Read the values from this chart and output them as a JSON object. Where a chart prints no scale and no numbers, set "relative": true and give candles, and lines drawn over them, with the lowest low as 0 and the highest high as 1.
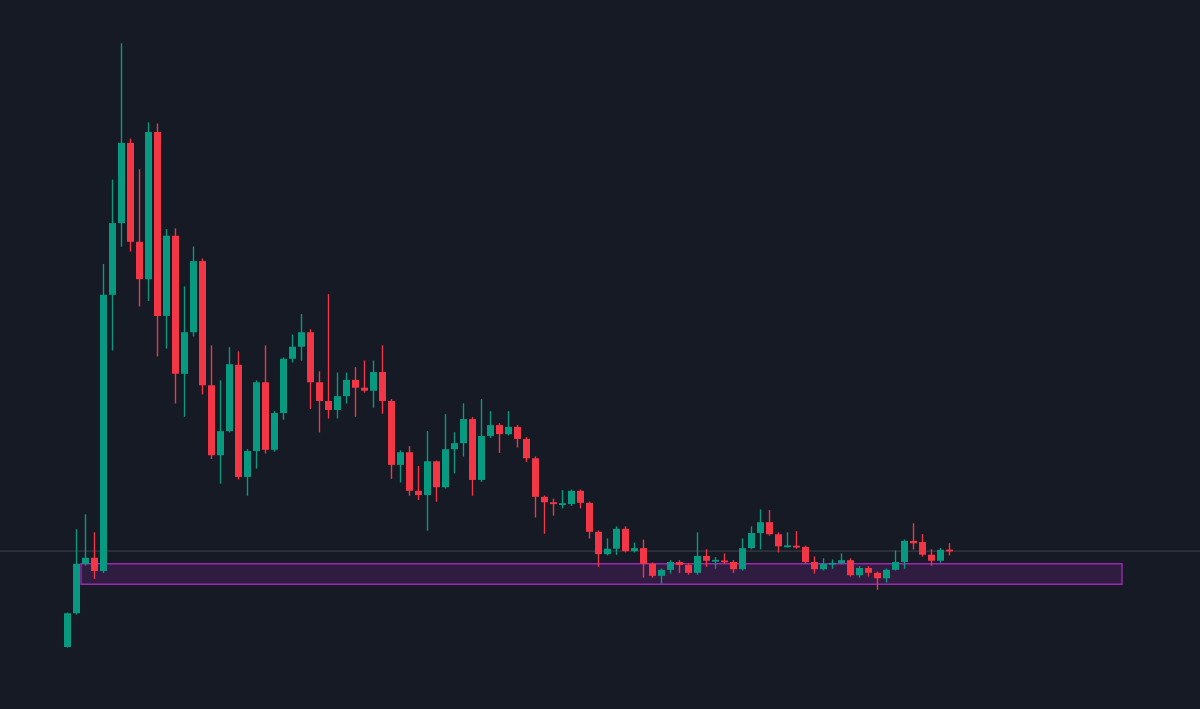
{
  "chart_data": {
    "type": "candlestick",
    "relative": true,
    "categories": [
      null,
      null,
      null,
      null,
      null,
      null,
      null,
      null,
      null,
      null,
      null,
      null,
      null,
      null,
      null,
      null,
      null,
      null,
      null,
      null,
      null,
      null,
      null,
      null,
      null,
      null,
      null,
      null,
      null,
      null,
      null,
      null,
      null,
      null,
      null,
      null,
      null,
      null,
      null,
      null,
      null,
      null,
      null,
      null,
      null,
      null,
      null,
      null,
      null,
      null,
      null,
      null,
      null,
      null,
      null,
      null,
      null,
      null,
      null,
      null,
      null,
      null,
      null,
      null,
      null,
      null,
      null,
      null,
      null,
      null,
      null,
      null,
      null,
      null,
      null,
      null,
      null,
      null,
      null,
      null,
      null,
      null,
      null,
      null,
      null,
      null,
      null,
      null,
      null,
      null,
      null,
      null,
      null,
      null,
      null,
      null,
      null,
      null,
      null
    ],
    "ohlc": [
      [
        0,
        0.056,
        0,
        0.056
      ],
      [
        0.056,
        0.194,
        0.055,
        0.138
      ],
      [
        0.138,
        0.219,
        0.136,
        0.148
      ],
      [
        0.148,
        0.189,
        0.114,
        0.126
      ],
      [
        0.126,
        0.634,
        0.124,
        0.584
      ],
      [
        0.584,
        0.774,
        0.493,
        0.703
      ],
      [
        0.703,
        1.0,
        0.665,
        0.836
      ],
      [
        0.836,
        0.842,
        0.657,
        0.672
      ],
      [
        0.672,
        0.791,
        0.566,
        0.61
      ],
      [
        0.61,
        0.869,
        0.575,
        0.854
      ],
      [
        0.854,
        0.867,
        0.483,
        0.549
      ],
      [
        0.549,
        0.692,
        0.496,
        0.682
      ],
      [
        0.682,
        0.693,
        0.405,
        0.453
      ],
      [
        0.453,
        0.597,
        0.383,
        0.522
      ],
      [
        0.522,
        0.663,
        0.516,
        0.64
      ],
      [
        0.64,
        0.643,
        0.42,
        0.434
      ],
      [
        0.434,
        0.499,
        0.313,
        0.318
      ],
      [
        0.318,
        0.441,
        0.272,
        0.358
      ],
      [
        0.358,
        0.496,
        0.357,
        0.469
      ],
      [
        0.468,
        0.489,
        0.279,
        0.282
      ],
      [
        0.282,
        0.327,
        0.252,
        0.325
      ],
      [
        0.325,
        0.441,
        0.297,
        0.439
      ],
      [
        0.439,
        0.499,
        0.322,
        0.327
      ],
      [
        0.327,
        0.39,
        0.325,
        0.388
      ],
      [
        0.388,
        0.479,
        0.378,
        0.478
      ],
      [
        0.478,
        0.517,
        0.473,
        0.498
      ],
      [
        0.498,
        0.551,
        0.476,
        0.522
      ],
      [
        0.522,
        0.526,
        0.396,
        0.439
      ],
      [
        0.439,
        0.456,
        0.357,
        0.408
      ],
      [
        0.408,
        0.584,
        0.38,
        0.393
      ],
      [
        0.393,
        0.454,
        0.38,
        0.416
      ],
      [
        0.416,
        0.454,
        0.405,
        0.443
      ],
      [
        0.443,
        0.463,
        0.383,
        0.43
      ],
      [
        0.43,
        0.474,
        0.423,
        0.425
      ],
      [
        0.425,
        0.474,
        0.398,
        0.456
      ],
      [
        0.456,
        0.499,
        0.388,
        0.408
      ],
      [
        0.408,
        0.41,
        0.28,
        0.302
      ],
      [
        0.302,
        0.325,
        0.274,
        0.323
      ],
      [
        0.323,
        0.332,
        0.252,
        0.259
      ],
      [
        0.259,
        0.299,
        0.245,
        0.252
      ],
      [
        0.252,
        0.357,
        0.194,
        0.308
      ],
      [
        0.308,
        0.308,
        0.242,
        0.265
      ],
      [
        0.265,
        0.385,
        0.264,
        0.328
      ],
      [
        0.328,
        0.355,
        0.289,
        0.338
      ],
      [
        0.338,
        0.403,
        0.317,
        0.378
      ],
      [
        0.378,
        0.38,
        0.252,
        0.277
      ],
      [
        0.277,
        0.41,
        0.275,
        0.35
      ],
      [
        0.35,
        0.39,
        0.348,
        0.368
      ],
      [
        0.368,
        0.37,
        0.323,
        0.353
      ],
      [
        0.353,
        0.39,
        0.352,
        0.365
      ],
      [
        0.365,
        0.367,
        0.332,
        0.345
      ],
      [
        0.345,
        0.347,
        0.308,
        0.313
      ],
      [
        0.313,
        0.315,
        0.216,
        0.249
      ],
      [
        0.249,
        0.25,
        0.189,
        0.24
      ],
      [
        0.24,
        0.245,
        0.219,
        0.237
      ],
      [
        0.237,
        0.259,
        0.231,
        0.237
      ],
      [
        0.237,
        0.26,
        0.235,
        0.259
      ],
      [
        0.259,
        0.26,
        0.231,
        0.239
      ],
      [
        0.239,
        0.24,
        0.181,
        0.191
      ],
      [
        0.191,
        0.192,
        0.134,
        0.154
      ],
      [
        0.154,
        0.179,
        0.153,
        0.163
      ],
      [
        0.163,
        0.199,
        0.154,
        0.196
      ],
      [
        0.196,
        0.199,
        0.158,
        0.159
      ],
      [
        0.159,
        0.172,
        0.158,
        0.164
      ],
      [
        0.164,
        0.177,
        0.116,
        0.138
      ],
      [
        0.138,
        0.139,
        0.116,
        0.118
      ],
      [
        0.118,
        0.129,
        0.106,
        0.128
      ],
      [
        0.128,
        0.143,
        0.123,
        0.141
      ],
      [
        0.141,
        0.143,
        0.124,
        0.136
      ],
      [
        0.136,
        0.138,
        0.121,
        0.123
      ],
      [
        0.123,
        0.189,
        0.121,
        0.151
      ],
      [
        0.151,
        0.161,
        0.134,
        0.143
      ],
      [
        0.143,
        0.148,
        0.131,
        0.143
      ],
      [
        0.143,
        0.154,
        0.139,
        0.141
      ],
      [
        0.141,
        0.143,
        0.124,
        0.129
      ],
      [
        0.129,
        0.179,
        0.128,
        0.164
      ],
      [
        0.164,
        0.199,
        0.163,
        0.189
      ],
      [
        0.189,
        0.227,
        0.163,
        0.207
      ],
      [
        0.207,
        0.226,
        0.186,
        0.187
      ],
      [
        0.187,
        0.189,
        0.158,
        0.167
      ],
      [
        0.167,
        0.189,
        0.166,
        0.167
      ],
      [
        0.167,
        0.191,
        0.164,
        0.166
      ],
      [
        0.166,
        0.167,
        0.139,
        0.141
      ],
      [
        0.141,
        0.149,
        0.123,
        0.129
      ],
      [
        0.129,
        0.146,
        0.128,
        0.138
      ],
      [
        0.138,
        0.144,
        0.131,
        0.138
      ],
      [
        0.139,
        0.154,
        0.138,
        0.144
      ],
      [
        0.144,
        0.146,
        0.118,
        0.119
      ],
      [
        0.119,
        0.133,
        0.116,
        0.131
      ],
      [
        0.131,
        0.133,
        0.118,
        0.123
      ],
      [
        0.123,
        0.124,
        0.096,
        0.114
      ],
      [
        0.114,
        0.129,
        0.108,
        0.128
      ],
      [
        0.128,
        0.159,
        0.128,
        0.141
      ],
      [
        0.141,
        0.177,
        0.131,
        0.176
      ],
      [
        0.176,
        0.204,
        0.163,
        0.172
      ],
      [
        0.174,
        0.186,
        0.151,
        0.153
      ],
      [
        0.153,
        0.161,
        0.136,
        0.143
      ],
      [
        0.143,
        0.163,
        0.141,
        0.161
      ],
      [
        0.161,
        0.171,
        0.153,
        0.159
      ]
    ],
    "ref_lines": [
      {
        "axis": "y",
        "value": 0.159,
        "color": "#363a45"
      }
    ],
    "bands": [
      {
        "axis": "y",
        "from": 0.104,
        "to": 0.138,
        "color": "#9c27b0"
      }
    ]
  }
}
